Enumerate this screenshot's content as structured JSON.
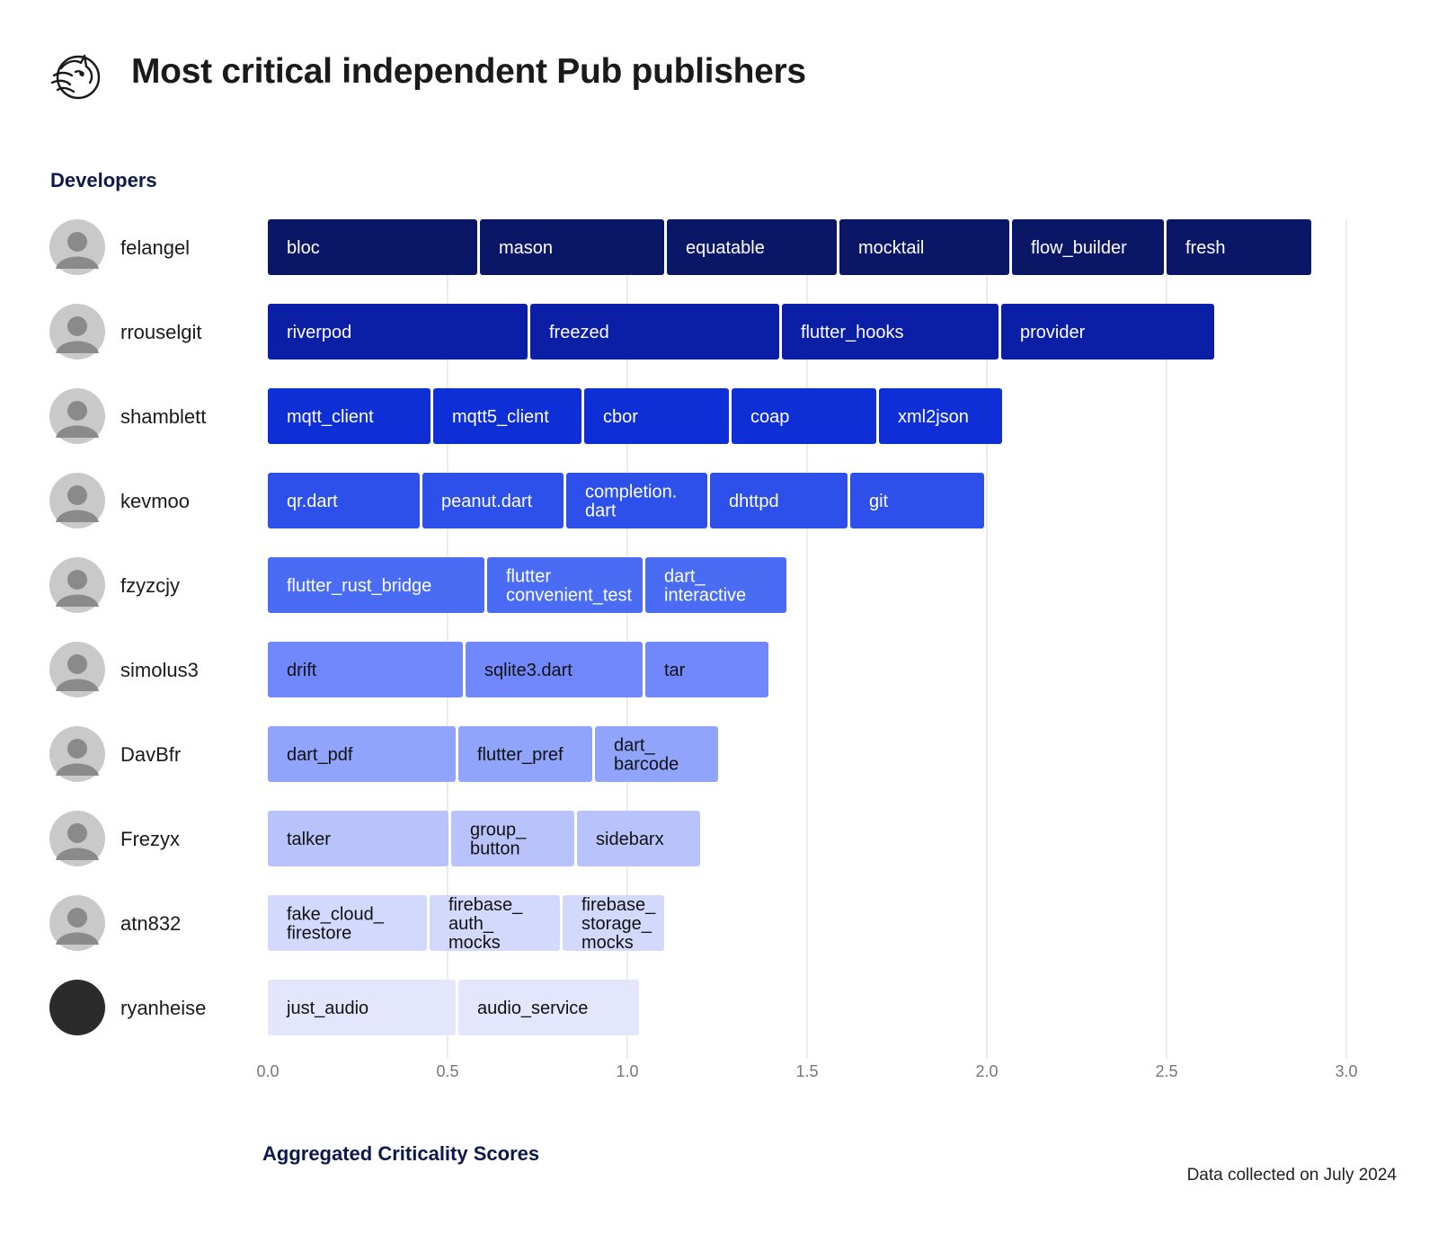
{
  "title": "Most critical independent Pub publishers",
  "icons": {
    "logo": "unicorn-head-icon",
    "avatar": "avatar-icon"
  },
  "chart_data": {
    "type": "bar",
    "stacked": true,
    "orientation": "horizontal",
    "ylabel": "Developers",
    "xlabel": "Aggregated Criticality Scores",
    "xlim": [
      0.0,
      3.0
    ],
    "xticks": [
      "0.0",
      "0.5",
      "1.0",
      "1.5",
      "2.0",
      "2.5",
      "3.0"
    ],
    "grid": "vertical",
    "note": "Data collected on July 2024",
    "developers": [
      {
        "name": "felangel",
        "color": "#0a1766",
        "text_color": "#ffffff",
        "packages": [
          {
            "label": "bloc",
            "value": 0.59
          },
          {
            "label": "mason",
            "value": 0.52
          },
          {
            "label": "equatable",
            "value": 0.48
          },
          {
            "label": "mocktail",
            "value": 0.48
          },
          {
            "label": "flow_builder",
            "value": 0.43
          },
          {
            "label": "fresh",
            "value": 0.41
          }
        ]
      },
      {
        "name": "rrouselgit",
        "color": "#0a1ea6",
        "text_color": "#ffffff",
        "packages": [
          {
            "label": "riverpod",
            "value": 0.73
          },
          {
            "label": "freezed",
            "value": 0.7
          },
          {
            "label": "flutter_hooks",
            "value": 0.61
          },
          {
            "label": "provider",
            "value": 0.6
          }
        ]
      },
      {
        "name": "shamblett",
        "color": "#0e2ed6",
        "text_color": "#ffffff",
        "packages": [
          {
            "label": "mqtt_client",
            "value": 0.46
          },
          {
            "label": "mqtt5_client",
            "value": 0.42
          },
          {
            "label": "cbor",
            "value": 0.41
          },
          {
            "label": "coap",
            "value": 0.41
          },
          {
            "label": "xml2json",
            "value": 0.35
          }
        ]
      },
      {
        "name": "kevmoo",
        "color": "#2d50ea",
        "text_color": "#ffffff",
        "packages": [
          {
            "label": "qr.dart",
            "value": 0.43
          },
          {
            "label": "peanut.dart",
            "value": 0.4
          },
          {
            "label": "completion.\ndart",
            "value": 0.4
          },
          {
            "label": "dhttpd",
            "value": 0.39
          },
          {
            "label": "git",
            "value": 0.38
          }
        ]
      },
      {
        "name": "fzyzcjy",
        "color": "#4a6cf4",
        "text_color": "#ffffff",
        "packages": [
          {
            "label": "flutter_rust_bridge",
            "value": 0.61
          },
          {
            "label": "flutter\nconvenient_test",
            "value": 0.44
          },
          {
            "label": "dart_\ninteractive",
            "value": 0.4
          }
        ]
      },
      {
        "name": "simolus3",
        "color": "#7088fb",
        "text_color": "#111111",
        "packages": [
          {
            "label": "drift",
            "value": 0.55
          },
          {
            "label": "sqlite3.dart",
            "value": 0.5
          },
          {
            "label": "tar",
            "value": 0.35
          }
        ]
      },
      {
        "name": "DavBfr",
        "color": "#90a4fb",
        "text_color": "#111111",
        "packages": [
          {
            "label": "dart_pdf",
            "value": 0.53
          },
          {
            "label": "flutter_pref",
            "value": 0.38
          },
          {
            "label": "dart_\nbarcode",
            "value": 0.35
          }
        ]
      },
      {
        "name": "Frezyx",
        "color": "#b8c3fb",
        "text_color": "#111111",
        "packages": [
          {
            "label": "talker",
            "value": 0.51
          },
          {
            "label": "group_\nbutton",
            "value": 0.35
          },
          {
            "label": "sidebarx",
            "value": 0.35
          }
        ]
      },
      {
        "name": "atn832",
        "color": "#d3d9fc",
        "text_color": "#111111",
        "packages": [
          {
            "label": "fake_cloud_\nfirestore",
            "value": 0.45
          },
          {
            "label": "firebase_\nauth_\nmocks",
            "value": 0.37
          },
          {
            "label": "firebase_\nstorage_\nmocks",
            "value": 0.29
          }
        ]
      },
      {
        "name": "ryanheise",
        "color": "#e3e6fd",
        "text_color": "#111111",
        "packages": [
          {
            "label": "just_audio",
            "value": 0.53
          },
          {
            "label": "audio_service",
            "value": 0.51
          }
        ]
      }
    ]
  }
}
